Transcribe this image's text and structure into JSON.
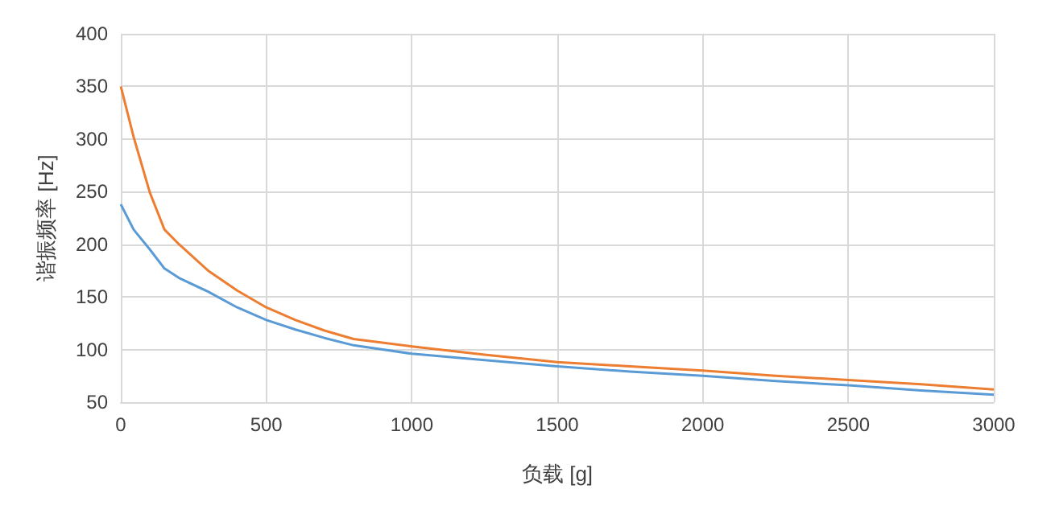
{
  "chart_data": {
    "type": "line",
    "xlabel": "负载 [g]",
    "ylabel": "谐振频率 [Hz]",
    "xlim": [
      0,
      3000
    ],
    "xticks": [
      0,
      500,
      1000,
      1500,
      2000,
      2500,
      3000
    ],
    "ylim": [
      50,
      400
    ],
    "yticks": [
      50,
      100,
      150,
      200,
      250,
      300,
      350,
      400
    ],
    "grid": true,
    "line_style": "solid",
    "marker": "none",
    "series": [
      {
        "color": "#ed7d31",
        "x": [
          0,
          44,
          100,
          150,
          200,
          300,
          400,
          500,
          600,
          700,
          800,
          1000,
          1250,
          1500,
          1750,
          2000,
          2250,
          2500,
          2750,
          3000
        ],
        "values": [
          350,
          302,
          249,
          214,
          200,
          175,
          156,
          140,
          128,
          118,
          110,
          103,
          95,
          88,
          84,
          80,
          75,
          71,
          67,
          62
        ]
      },
      {
        "color": "#5b9bd5",
        "x": [
          0,
          44,
          100,
          150,
          200,
          300,
          400,
          500,
          600,
          700,
          800,
          1000,
          1250,
          1500,
          1750,
          2000,
          2250,
          2500,
          2750,
          3000
        ],
        "values": [
          238,
          214,
          195,
          177,
          168,
          155,
          140,
          128,
          119,
          111,
          104,
          96,
          90,
          84,
          79,
          75,
          70,
          66,
          61,
          57
        ]
      }
    ]
  }
}
